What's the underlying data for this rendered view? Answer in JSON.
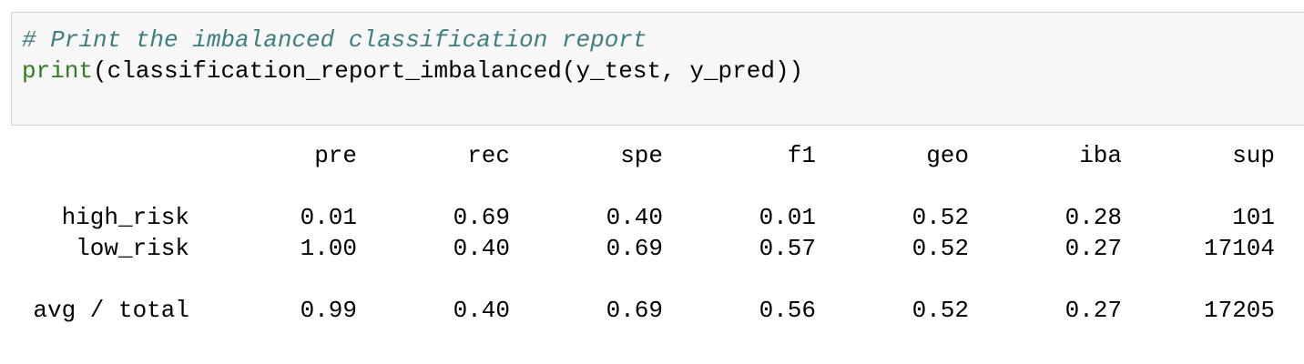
{
  "code_cell": {
    "comment": "# Print the imbalanced classification report",
    "line2_builtin": "print",
    "line2_rest": "(classification_report_imbalanced(y_test, y_pred))",
    "colors": {
      "comment": "#3d7f7f",
      "builtin": "#2f7d1f",
      "background": "#f7f7f7",
      "border": "#cfcfcf"
    }
  },
  "report": {
    "columns": [
      "pre",
      "rec",
      "spe",
      "f1",
      "geo",
      "iba",
      "sup"
    ],
    "rows": [
      {
        "label": "high_risk",
        "values": [
          "0.01",
          "0.69",
          "0.40",
          "0.01",
          "0.52",
          "0.28",
          "101"
        ]
      },
      {
        "label": "low_risk",
        "values": [
          "1.00",
          "0.40",
          "0.69",
          "0.57",
          "0.52",
          "0.27",
          "17104"
        ]
      }
    ],
    "total": {
      "label": "avg / total",
      "values": [
        "0.99",
        "0.40",
        "0.69",
        "0.56",
        "0.52",
        "0.27",
        "17205"
      ]
    }
  }
}
